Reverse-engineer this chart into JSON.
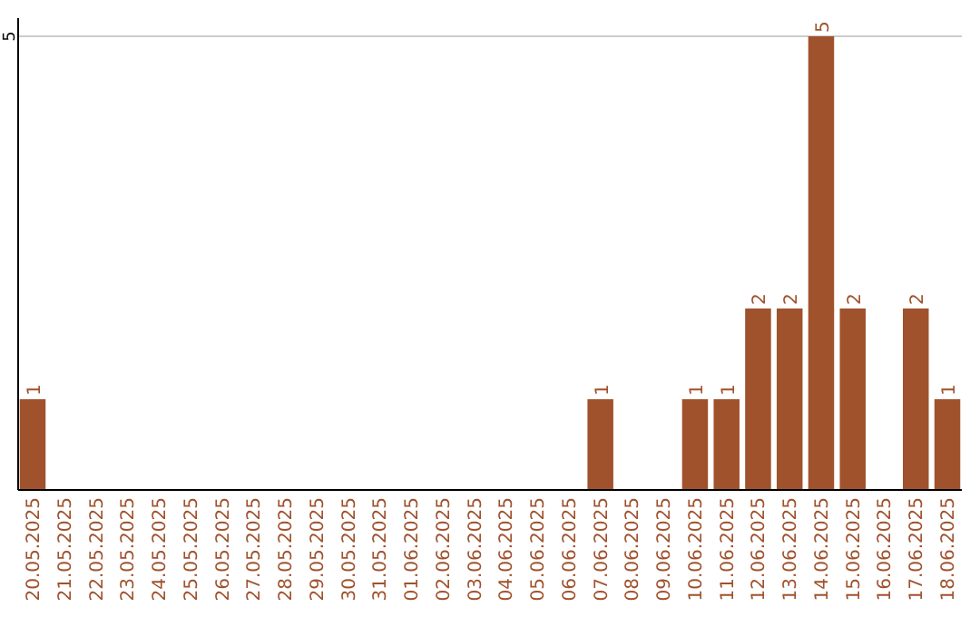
{
  "chart_data": {
    "type": "bar",
    "categories": [
      "20.05.2025",
      "21.05.2025",
      "22.05.2025",
      "23.05.2025",
      "24.05.2025",
      "25.05.2025",
      "26.05.2025",
      "27.05.2025",
      "28.05.2025",
      "29.05.2025",
      "30.05.2025",
      "31.05.2025",
      "01.06.2025",
      "02.06.2025",
      "03.06.2025",
      "04.06.2025",
      "05.06.2025",
      "06.06.2025",
      "07.06.2025",
      "08.06.2025",
      "09.06.2025",
      "10.06.2025",
      "11.06.2025",
      "12.06.2025",
      "13.06.2025",
      "14.06.2025",
      "15.06.2025",
      "16.06.2025",
      "17.06.2025",
      "18.06.2025"
    ],
    "values": [
      1,
      0,
      0,
      0,
      0,
      0,
      0,
      0,
      0,
      0,
      0,
      0,
      0,
      0,
      0,
      0,
      0,
      0,
      1,
      0,
      0,
      1,
      1,
      2,
      2,
      5,
      2,
      0,
      2,
      1
    ],
    "value_labels": [
      "1",
      null,
      null,
      null,
      null,
      null,
      null,
      null,
      null,
      null,
      null,
      null,
      null,
      null,
      null,
      null,
      null,
      null,
      "1",
      null,
      null,
      "1",
      "1",
      "2",
      "2",
      "5",
      "2",
      null,
      "2",
      "1"
    ],
    "color": "#a0522d",
    "ylim": [
      0,
      5.2
    ],
    "yticks": [
      5
    ],
    "grid": "y"
  }
}
